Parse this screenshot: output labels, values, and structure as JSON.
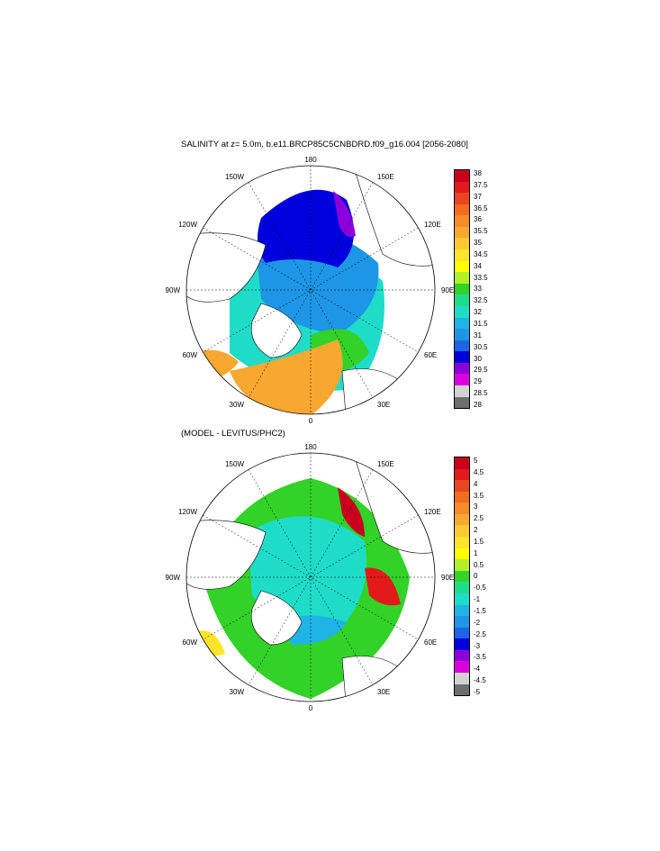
{
  "top_panel": {
    "title": "SALINITY at z=   5.0m, b.e11.BRCP85C5CNBDRD.f09_g16.004 [2056-2080]",
    "lon_labels": {
      "n": "180",
      "nw": "150W",
      "ne": "150E",
      "wnw": "120W",
      "ene": "120E",
      "w": "90W",
      "e": "90E",
      "wsw": "60W",
      "ese": "60E",
      "sw": "30W",
      "se": "30E",
      "s": "0"
    },
    "colorbar": {
      "labels": [
        "38",
        "37.5",
        "37",
        "36.5",
        "36",
        "35.5",
        "35",
        "34.5",
        "34",
        "33.5",
        "33",
        "32.5",
        "32",
        "31.5",
        "31",
        "30.5",
        "30",
        "29.5",
        "29",
        "28.5",
        "28"
      ],
      "colors": [
        "#c8001e",
        "#e41a1a",
        "#e8461e",
        "#f06e1e",
        "#f58c28",
        "#f8a830",
        "#fbc832",
        "#fde428",
        "#ffff00",
        "#b4f028",
        "#32d228",
        "#1edc8c",
        "#1edcc8",
        "#1eb4e6",
        "#1e96e6",
        "#1e64e6",
        "#0000dc",
        "#8c00dc",
        "#dc00dc",
        "#d2d2d2",
        "#6e6e6e"
      ]
    }
  },
  "bottom_panel": {
    "title": "(MODEL - LEVITUS/PHC2)",
    "lon_labels": {
      "n": "180",
      "nw": "150W",
      "ne": "150E",
      "wnw": "120W",
      "ene": "120E",
      "w": "90W",
      "e": "90E",
      "wsw": "60W",
      "ese": "60E",
      "sw": "30W",
      "se": "30E",
      "s": "0"
    },
    "colorbar": {
      "labels": [
        "5",
        "4.5",
        "4",
        "3.5",
        "3",
        "2.5",
        "2",
        "1.5",
        "1",
        "0.5",
        "0",
        "-0.5",
        "-1",
        "-1.5",
        "-2",
        "-2.5",
        "-3",
        "-3.5",
        "-4",
        "-4.5",
        "-5"
      ],
      "colors": [
        "#c8001e",
        "#e41a1a",
        "#e8461e",
        "#f06e1e",
        "#f58c28",
        "#f8a830",
        "#fbc832",
        "#fde428",
        "#ffff00",
        "#b4f028",
        "#32d228",
        "#1edc8c",
        "#1edcc8",
        "#1eb4e6",
        "#1e96e6",
        "#1e64e6",
        "#0000dc",
        "#8c00dc",
        "#dc00dc",
        "#d2d2d2",
        "#6e6e6e"
      ]
    }
  },
  "colors": {
    "ocean_blue": "#0000dc",
    "ocean_midblue": "#1e96e6",
    "ocean_cyan": "#1edcc8",
    "ocean_green": "#32d228",
    "ocean_orange": "#f8a830",
    "land": "#ffffff"
  }
}
